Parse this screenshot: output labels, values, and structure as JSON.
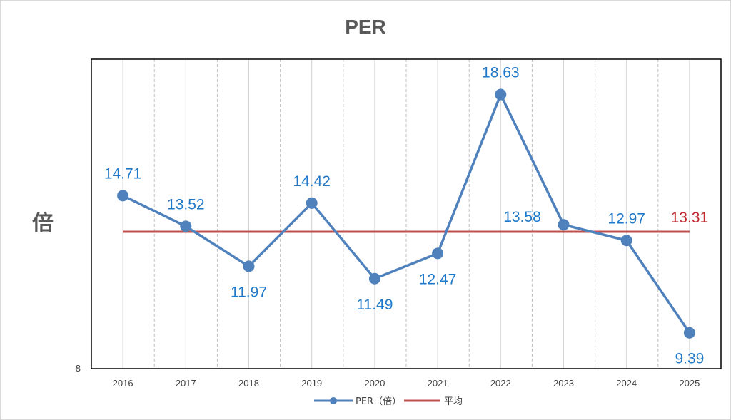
{
  "chart_data": {
    "type": "line",
    "title": "PER",
    "ylabel": "倍",
    "xlabel": "",
    "x": [
      "2016",
      "2017",
      "2018",
      "2019",
      "2020",
      "2021",
      "2022",
      "2023",
      "2024",
      "2025"
    ],
    "ylim": [
      8,
      20
    ],
    "y_ticks": [
      "8"
    ],
    "grid": "vertical",
    "legend_position": "bottom",
    "series": [
      {
        "name": "PER（倍）",
        "values": [
          14.71,
          13.52,
          11.97,
          14.42,
          11.49,
          12.47,
          18.63,
          13.58,
          12.97,
          9.39
        ],
        "labels": [
          "14.71",
          "13.52",
          "11.97",
          "14.42",
          "11.49",
          "12.47",
          "18.63",
          "13.58",
          "12.97",
          "9.39"
        ],
        "color": "#4f81bd",
        "marker": "circle"
      },
      {
        "name": "平均",
        "value": 13.31,
        "label": "13.31",
        "color": "#c0504d"
      }
    ],
    "colors": {
      "data_label": "#1f78c8",
      "average_label": "#c0282d",
      "title": "#595959",
      "axis_text": "#404040"
    }
  }
}
